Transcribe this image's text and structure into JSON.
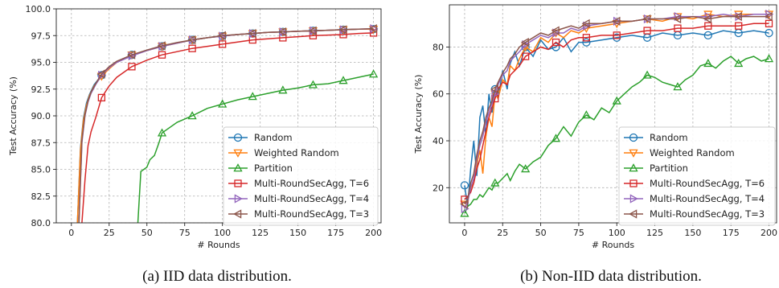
{
  "colors": {
    "Random": "#1f77b4",
    "Weighted Random": "#ff7f0e",
    "Partition": "#2ca02c",
    "Multi-RoundSecAgg, T=6": "#d62728",
    "Multi-RoundSecAgg, T=4": "#9467bd",
    "Multi-RoundSecAgg, T=3": "#8c564b"
  },
  "chart_data": [
    {
      "type": "line",
      "caption": "(a)  IID data distribution.",
      "xlabel": "# Rounds",
      "ylabel": "Test Accuracy (%)",
      "xlim": [
        -10,
        205
      ],
      "ylim": [
        80.0,
        100.0
      ],
      "xticks": [
        0,
        25,
        50,
        75,
        100,
        125,
        150,
        175,
        200
      ],
      "yticks": [
        "80.0",
        "82.5",
        "85.0",
        "87.5",
        "90.0",
        "92.5",
        "95.0",
        "97.5",
        "100.0"
      ],
      "grid": true,
      "legend": "lower-right",
      "series": [
        {
          "name": "Random",
          "marker": "circle",
          "x": [
            4,
            6,
            8,
            10,
            12,
            15,
            20,
            25,
            30,
            40,
            50,
            60,
            70,
            80,
            90,
            100,
            110,
            120,
            130,
            140,
            150,
            160,
            170,
            180,
            190,
            200
          ],
          "y": [
            80.0,
            87.0,
            89.8,
            91.2,
            92.0,
            92.9,
            93.8,
            94.5,
            95.0,
            95.7,
            96.1,
            96.5,
            96.8,
            97.1,
            97.3,
            97.45,
            97.6,
            97.7,
            97.8,
            97.85,
            97.9,
            97.95,
            98.0,
            98.05,
            98.1,
            98.1
          ]
        },
        {
          "name": "Weighted Random",
          "marker": "triangle-down",
          "x": [
            4,
            6,
            8,
            10,
            12,
            15,
            20,
            25,
            30,
            40,
            50,
            60,
            70,
            80,
            90,
            100,
            110,
            120,
            130,
            140,
            150,
            160,
            170,
            180,
            190,
            200
          ],
          "y": [
            80.0,
            86.8,
            89.6,
            91.0,
            91.9,
            92.8,
            93.7,
            94.4,
            95.0,
            95.7,
            96.1,
            96.5,
            96.8,
            97.1,
            97.3,
            97.45,
            97.6,
            97.7,
            97.8,
            97.85,
            97.9,
            97.95,
            98.0,
            98.05,
            98.1,
            98.1
          ]
        },
        {
          "name": "Partition",
          "marker": "triangle-up",
          "x": [
            44,
            46,
            48,
            50,
            52,
            55,
            58,
            60,
            70,
            80,
            90,
            100,
            110,
            120,
            130,
            140,
            150,
            160,
            170,
            180,
            190,
            200
          ],
          "y": [
            80.0,
            84.8,
            85.0,
            85.2,
            85.9,
            86.3,
            87.5,
            88.4,
            89.4,
            90.0,
            90.7,
            91.1,
            91.5,
            91.8,
            92.1,
            92.4,
            92.6,
            92.9,
            93.0,
            93.3,
            93.6,
            93.9
          ]
        },
        {
          "name": "Multi-RoundSecAgg, T=6",
          "marker": "square",
          "x": [
            7,
            9,
            11,
            13,
            16,
            20,
            25,
            30,
            40,
            50,
            60,
            70,
            80,
            90,
            100,
            110,
            120,
            130,
            140,
            150,
            160,
            170,
            180,
            190,
            200
          ],
          "y": [
            80.0,
            84.0,
            87.2,
            88.5,
            89.8,
            91.7,
            92.8,
            93.6,
            94.6,
            95.2,
            95.7,
            96.0,
            96.3,
            96.5,
            96.7,
            96.9,
            97.1,
            97.2,
            97.3,
            97.4,
            97.5,
            97.55,
            97.6,
            97.7,
            97.75
          ]
        },
        {
          "name": "Multi-RoundSecAgg, T=4",
          "marker": "triangle-right",
          "x": [
            5,
            7,
            9,
            11,
            13,
            16,
            20,
            25,
            30,
            40,
            50,
            60,
            70,
            80,
            90,
            100,
            110,
            120,
            130,
            140,
            150,
            160,
            170,
            180,
            190,
            200
          ],
          "y": [
            80.0,
            87.5,
            90.0,
            91.3,
            92.1,
            92.9,
            93.8,
            94.5,
            95.0,
            95.6,
            96.1,
            96.5,
            96.8,
            97.1,
            97.3,
            97.45,
            97.6,
            97.7,
            97.8,
            97.85,
            97.9,
            97.95,
            98.0,
            98.05,
            98.1,
            98.15
          ]
        },
        {
          "name": "Multi-RoundSecAgg, T=3",
          "marker": "triangle-left",
          "x": [
            5,
            7,
            9,
            11,
            13,
            16,
            20,
            25,
            30,
            40,
            50,
            60,
            70,
            80,
            90,
            100,
            110,
            120,
            130,
            140,
            150,
            160,
            170,
            180,
            190,
            200
          ],
          "y": [
            80.0,
            87.7,
            90.1,
            91.4,
            92.2,
            93.0,
            93.9,
            94.6,
            95.1,
            95.7,
            96.15,
            96.55,
            96.85,
            97.1,
            97.3,
            97.5,
            97.6,
            97.7,
            97.8,
            97.85,
            97.9,
            97.95,
            98.0,
            98.05,
            98.1,
            98.15
          ]
        }
      ]
    },
    {
      "type": "line",
      "caption": "(b)  Non-IID data distribution.",
      "xlabel": "# Rounds",
      "ylabel": "Test Accuracy (%)",
      "xlim": [
        -10,
        205
      ],
      "ylim": [
        5,
        98
      ],
      "xticks": [
        0,
        25,
        50,
        75,
        100,
        125,
        150,
        175,
        200
      ],
      "yticks": [
        "20",
        "40",
        "60",
        "80"
      ],
      "grid": true,
      "legend": "lower-right",
      "series": [
        {
          "name": "Random",
          "marker": "circle",
          "x": [
            0,
            2,
            4,
            6,
            8,
            10,
            12,
            14,
            16,
            18,
            20,
            22,
            25,
            28,
            30,
            33,
            36,
            40,
            45,
            50,
            55,
            60,
            65,
            70,
            75,
            80,
            90,
            100,
            110,
            120,
            130,
            140,
            150,
            160,
            170,
            180,
            190,
            200
          ],
          "y": [
            21,
            12,
            28,
            40,
            25,
            50,
            55,
            42,
            60,
            52,
            62,
            58,
            70,
            62,
            73,
            78,
            72,
            80,
            76,
            83,
            79,
            80,
            84,
            78,
            82,
            82,
            83,
            84,
            85,
            84,
            86,
            85,
            86,
            85,
            87,
            86,
            87,
            86
          ]
        },
        {
          "name": "Weighted Random",
          "marker": "triangle-down",
          "x": [
            0,
            2,
            4,
            6,
            8,
            10,
            12,
            14,
            16,
            18,
            20,
            22,
            25,
            28,
            30,
            33,
            36,
            40,
            45,
            50,
            55,
            60,
            65,
            70,
            75,
            80,
            90,
            100,
            110,
            120,
            130,
            140,
            150,
            160,
            170,
            180,
            190,
            200
          ],
          "y": [
            13,
            14,
            20,
            22,
            30,
            36,
            26,
            42,
            50,
            46,
            60,
            58,
            66,
            64,
            72,
            70,
            75,
            80,
            78,
            84,
            82,
            86,
            84,
            87,
            86,
            88,
            89,
            90,
            91,
            92,
            91,
            93,
            92,
            94,
            93,
            94,
            94,
            94
          ]
        },
        {
          "name": "Partition",
          "marker": "triangle-up",
          "x": [
            0,
            2,
            4,
            6,
            8,
            10,
            12,
            14,
            16,
            18,
            20,
            22,
            25,
            28,
            30,
            33,
            36,
            40,
            45,
            50,
            55,
            60,
            65,
            70,
            75,
            80,
            85,
            90,
            95,
            100,
            105,
            110,
            115,
            120,
            125,
            130,
            135,
            140,
            145,
            150,
            155,
            160,
            165,
            170,
            175,
            180,
            185,
            190,
            195,
            200
          ],
          "y": [
            9,
            12,
            13,
            15,
            15,
            17,
            16,
            18,
            20,
            19,
            22,
            22,
            24,
            26,
            23,
            27,
            30,
            28,
            31,
            33,
            38,
            41,
            46,
            42,
            48,
            51,
            49,
            54,
            52,
            57,
            60,
            63,
            65,
            68,
            67,
            65,
            64,
            63,
            66,
            68,
            72,
            73,
            71,
            74,
            76,
            73,
            75,
            76,
            74,
            75
          ]
        },
        {
          "name": "Multi-RoundSecAgg, T=6",
          "marker": "square",
          "x": [
            0,
            2,
            4,
            6,
            8,
            10,
            12,
            14,
            16,
            18,
            20,
            22,
            25,
            28,
            30,
            33,
            36,
            40,
            45,
            50,
            55,
            60,
            65,
            70,
            75,
            80,
            90,
            100,
            110,
            120,
            130,
            140,
            150,
            160,
            170,
            180,
            190,
            200
          ],
          "y": [
            15,
            16,
            18,
            22,
            28,
            32,
            38,
            44,
            50,
            54,
            58,
            62,
            65,
            64,
            68,
            70,
            72,
            76,
            78,
            80,
            79,
            82,
            80,
            83,
            84,
            84,
            85,
            85,
            86,
            87,
            87,
            88,
            88,
            89,
            89,
            89,
            90,
            90
          ]
        },
        {
          "name": "Multi-RoundSecAgg, T=4",
          "marker": "triangle-right",
          "x": [
            0,
            2,
            4,
            6,
            8,
            10,
            12,
            14,
            16,
            18,
            20,
            22,
            25,
            28,
            30,
            33,
            36,
            40,
            45,
            50,
            55,
            60,
            65,
            70,
            75,
            80,
            90,
            100,
            110,
            120,
            130,
            140,
            150,
            160,
            170,
            180,
            190,
            200
          ],
          "y": [
            11,
            14,
            20,
            24,
            32,
            38,
            42,
            48,
            52,
            56,
            60,
            64,
            68,
            70,
            74,
            76,
            78,
            81,
            83,
            85,
            84,
            86,
            86,
            88,
            87,
            89,
            90,
            91,
            91,
            92,
            92,
            93,
            93,
            93,
            94,
            93,
            94,
            94
          ]
        },
        {
          "name": "Multi-RoundSecAgg, T=3",
          "marker": "triangle-left",
          "x": [
            0,
            2,
            4,
            6,
            8,
            10,
            12,
            14,
            16,
            18,
            20,
            22,
            25,
            28,
            30,
            33,
            36,
            40,
            45,
            50,
            55,
            60,
            65,
            70,
            75,
            80,
            90,
            100,
            110,
            120,
            130,
            140,
            150,
            160,
            170,
            180,
            190,
            200
          ],
          "y": [
            13,
            15,
            22,
            26,
            34,
            40,
            44,
            50,
            54,
            57,
            62,
            65,
            69,
            72,
            75,
            77,
            80,
            82,
            84,
            86,
            85,
            87,
            88,
            89,
            88,
            90,
            90,
            91,
            91,
            92,
            92,
            92,
            93,
            92,
            93,
            93,
            93,
            93
          ]
        }
      ]
    }
  ]
}
